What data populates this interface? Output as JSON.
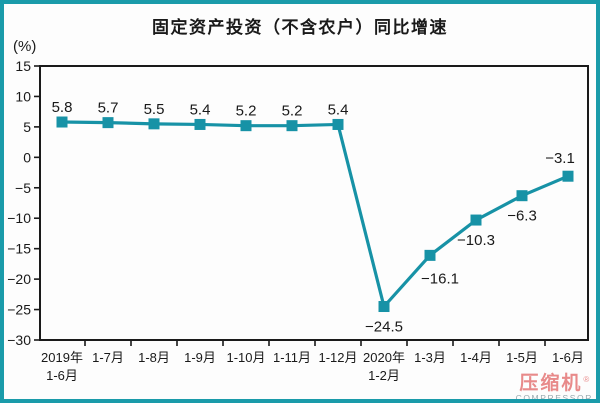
{
  "y_axis_unit": "(%)",
  "watermark": {
    "cn": "压缩机",
    "reg": "®",
    "en": "COMPRESSOR"
  },
  "chart_data": {
    "type": "line",
    "title": "固定资产投资（不含农户）同比增速",
    "ylabel": "(%)",
    "categories": [
      [
        "2019年",
        "1-6月"
      ],
      [
        "1-7月"
      ],
      [
        "1-8月"
      ],
      [
        "1-9月"
      ],
      [
        "1-10月"
      ],
      [
        "1-11月"
      ],
      [
        "1-12月"
      ],
      [
        "2020年",
        "1-2月"
      ],
      [
        "1-3月"
      ],
      [
        "1-4月"
      ],
      [
        "1-5月"
      ],
      [
        "1-6月"
      ]
    ],
    "values": [
      5.8,
      5.7,
      5.5,
      5.4,
      5.2,
      5.2,
      5.4,
      -24.5,
      -16.1,
      -10.3,
      -6.3,
      -3.1
    ],
    "ylim": [
      -30,
      15
    ],
    "y_ticks": [
      15,
      10,
      5,
      0,
      -5,
      -10,
      -15,
      -20,
      -25,
      -30
    ],
    "grid": false,
    "legend": false,
    "line_color": "#1792a6",
    "marker": "square",
    "axis_color": "#1a1a1a",
    "frame_color": "#1a9baa"
  }
}
